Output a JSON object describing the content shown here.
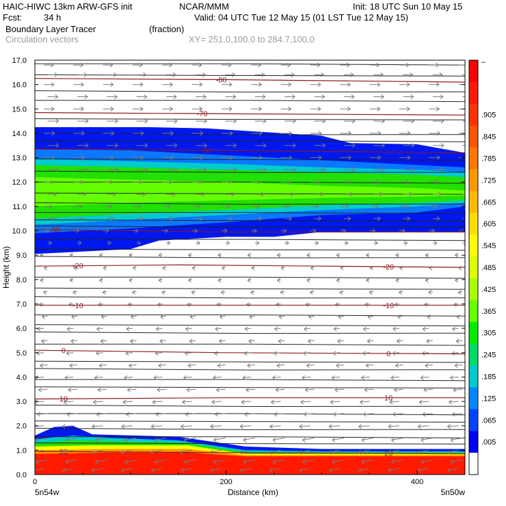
{
  "header": {
    "model": "HAIC-HIWC 13km ARW-GFS init",
    "org": "NCAR/MMM",
    "init": "Init: 18 UTC Sun 10 May 15",
    "fcst_label": "Fcst:",
    "fcst_value": "34 h",
    "valid": "Valid: 04 UTC Tue 12 May 15 (01 LST Tue 12 May 15)",
    "field": "Boundary Layer Tracer",
    "units": "(fraction)",
    "vectors": "Circulation vectors",
    "xy": "XY= 251.0,100.0 to 284.7,100.0"
  },
  "chart_data": {
    "type": "heatmap",
    "title": "Boundary Layer Tracer",
    "xlabel": "Distance (km)",
    "ylabel": "Height (km)",
    "xlim": [
      0,
      450
    ],
    "ylim": [
      0,
      17
    ],
    "x_ticks": [
      0,
      200,
      400
    ],
    "x_tick_labels": [
      "0",
      "200",
      "400"
    ],
    "y_ticks": [
      0,
      1,
      2,
      3,
      4,
      5,
      6,
      7,
      8,
      9,
      10,
      11,
      12,
      13,
      14,
      15,
      16,
      17
    ],
    "y_tick_labels": [
      "0.0",
      "1.0",
      "2.0",
      "3.0",
      "4.0",
      "5.0",
      "6.0",
      "7.0",
      "8.0",
      "9.0",
      "10.0",
      "11.0",
      "12.0",
      "13.0",
      "14.0",
      "15.0",
      "16.0",
      "17.0"
    ],
    "endpoint_labels": {
      "left": "5n54w",
      "right": "5n50w"
    },
    "colorbar": {
      "labels": [
        "–",
        ".905",
        ".845",
        ".785",
        ".725",
        ".665",
        ".605",
        ".545",
        ".485",
        ".425",
        ".365",
        ".305",
        ".245",
        ".185",
        ".125",
        ".065",
        ".005"
      ],
      "colors": [
        "#ff0000",
        "#ff1a00",
        "#ff3300",
        "#ff5500",
        "#ff7700",
        "#ff9900",
        "#ffbb00",
        "#ffdd00",
        "#ffff00",
        "#ddff00",
        "#aaff00",
        "#66ff00",
        "#00ee00",
        "#00dd66",
        "#00cccc",
        "#0088ff",
        "#0044ff",
        "#0000ff",
        "#ffffff"
      ]
    },
    "bands": [
      {
        "name": "upper-outer",
        "color": "#0018f0",
        "top": [
          [
            0,
            14.25
          ],
          [
            120,
            14.25
          ],
          [
            180,
            14.2
          ],
          [
            300,
            13.9
          ],
          [
            330,
            13.6
          ],
          [
            400,
            13.55
          ],
          [
            450,
            13.2
          ]
        ],
        "bottom": [
          [
            0,
            9.05
          ],
          [
            100,
            9.25
          ],
          [
            130,
            9.6
          ],
          [
            200,
            9.75
          ],
          [
            250,
            9.75
          ],
          [
            300,
            9.95
          ],
          [
            400,
            9.95
          ],
          [
            450,
            9.95
          ]
        ]
      },
      {
        "name": "upper-mid",
        "color": "#0a78ff",
        "top": [
          [
            0,
            13.35
          ],
          [
            100,
            13.3
          ],
          [
            200,
            13.1
          ],
          [
            300,
            12.9
          ],
          [
            400,
            12.7
          ],
          [
            450,
            12.6
          ]
        ],
        "bottom": [
          [
            0,
            9.9
          ],
          [
            100,
            10.1
          ],
          [
            200,
            10.35
          ],
          [
            300,
            10.65
          ],
          [
            400,
            10.75
          ],
          [
            450,
            11.0
          ]
        ]
      },
      {
        "name": "upper-cyan",
        "color": "#00cccc",
        "top": [
          [
            0,
            12.95
          ],
          [
            100,
            12.85
          ],
          [
            200,
            12.75
          ],
          [
            300,
            12.6
          ],
          [
            400,
            12.5
          ],
          [
            450,
            12.4
          ]
        ],
        "bottom": [
          [
            0,
            10.25
          ],
          [
            100,
            10.45
          ],
          [
            200,
            10.65
          ],
          [
            300,
            10.85
          ],
          [
            400,
            11.0
          ],
          [
            450,
            11.15
          ]
        ]
      },
      {
        "name": "upper-green",
        "color": "#22e000",
        "top": [
          [
            0,
            12.7
          ],
          [
            100,
            12.6
          ],
          [
            200,
            12.5
          ],
          [
            300,
            12.4
          ],
          [
            400,
            12.3
          ],
          [
            450,
            12.2
          ]
        ],
        "bottom": [
          [
            0,
            10.5
          ],
          [
            100,
            10.7
          ],
          [
            200,
            10.85
          ],
          [
            300,
            11.05
          ],
          [
            400,
            11.15
          ],
          [
            450,
            11.25
          ]
        ]
      },
      {
        "name": "upper-lime",
        "color": "#66ff00",
        "top": [
          [
            0,
            12.2
          ],
          [
            100,
            12.1
          ],
          [
            200,
            12.0
          ],
          [
            300,
            11.85
          ],
          [
            400,
            11.75
          ],
          [
            450,
            11.65
          ]
        ],
        "bottom": [
          [
            0,
            11.0
          ],
          [
            100,
            11.15
          ],
          [
            200,
            11.25
          ],
          [
            300,
            11.35
          ],
          [
            400,
            11.4
          ],
          [
            450,
            11.45
          ]
        ]
      },
      {
        "name": "bl-blue",
        "color": "#0018f0",
        "top": [
          [
            0,
            1.6
          ],
          [
            20,
            1.95
          ],
          [
            40,
            2.0
          ],
          [
            60,
            1.65
          ],
          [
            150,
            1.55
          ],
          [
            220,
            1.15
          ],
          [
            300,
            1.05
          ],
          [
            450,
            1.05
          ]
        ],
        "bottom": [
          [
            0,
            0
          ],
          [
            450,
            0
          ]
        ]
      },
      {
        "name": "bl-cyan",
        "color": "#00cccc",
        "top": [
          [
            0,
            1.45
          ],
          [
            40,
            1.6
          ],
          [
            80,
            1.5
          ],
          [
            150,
            1.4
          ],
          [
            220,
            1.0
          ],
          [
            300,
            0.95
          ],
          [
            450,
            0.95
          ]
        ],
        "bottom": [
          [
            0,
            0
          ],
          [
            450,
            0
          ]
        ]
      },
      {
        "name": "bl-green",
        "color": "#22e000",
        "top": [
          [
            0,
            1.3
          ],
          [
            40,
            1.4
          ],
          [
            100,
            1.35
          ],
          [
            160,
            1.3
          ],
          [
            220,
            0.92
          ],
          [
            450,
            0.9
          ]
        ],
        "bottom": [
          [
            0,
            0
          ],
          [
            450,
            0
          ]
        ]
      },
      {
        "name": "bl-yellow",
        "color": "#ffff00",
        "top": [
          [
            0,
            1.15
          ],
          [
            60,
            1.2
          ],
          [
            160,
            1.2
          ],
          [
            220,
            0.85
          ],
          [
            450,
            0.85
          ]
        ],
        "bottom": [
          [
            0,
            0
          ],
          [
            450,
            0
          ]
        ]
      },
      {
        "name": "bl-orange",
        "color": "#ff9900",
        "top": [
          [
            0,
            1.0
          ],
          [
            80,
            1.05
          ],
          [
            160,
            1.05
          ],
          [
            220,
            0.8
          ],
          [
            450,
            0.8
          ]
        ],
        "bottom": [
          [
            0,
            0
          ],
          [
            450,
            0
          ]
        ]
      },
      {
        "name": "bl-red",
        "color": "#ff1a00",
        "top": [
          [
            0,
            0.85
          ],
          [
            80,
            0.9
          ],
          [
            160,
            0.9
          ],
          [
            220,
            0.75
          ],
          [
            450,
            0.75
          ]
        ],
        "bottom": [
          [
            0,
            0
          ],
          [
            450,
            0
          ]
        ]
      }
    ],
    "isotherms": [
      {
        "label": "-80",
        "label_x": 195,
        "points": [
          [
            0,
            16.25
          ],
          [
            200,
            16.2
          ],
          [
            450,
            16.1
          ]
        ]
      },
      {
        "label": "-70",
        "label_x": 175,
        "points": [
          [
            0,
            14.85
          ],
          [
            200,
            14.8
          ],
          [
            450,
            14.75
          ]
        ]
      },
      {
        "label": "-60",
        "label_x": 180,
        "points": [
          [
            0,
            13.35
          ],
          [
            200,
            13.3
          ],
          [
            450,
            13.2
          ]
        ]
      },
      {
        "label": "-30",
        "label_x": 20,
        "points": [
          [
            0,
            10.05
          ],
          [
            200,
            9.95
          ],
          [
            450,
            9.95
          ]
        ]
      },
      {
        "label": "-20",
        "label_x": 45,
        "label_x2": 370,
        "points": [
          [
            0,
            8.55
          ],
          [
            150,
            8.6
          ],
          [
            300,
            8.55
          ],
          [
            450,
            8.5
          ]
        ]
      },
      {
        "label": "-10",
        "label_x": 45,
        "label_x2": 370,
        "points": [
          [
            0,
            6.95
          ],
          [
            200,
            6.95
          ],
          [
            450,
            6.95
          ]
        ]
      },
      {
        "label": "0",
        "label_x": 30,
        "label_x2": 370,
        "points": [
          [
            0,
            5.1
          ],
          [
            200,
            5.0
          ],
          [
            450,
            4.95
          ]
        ]
      },
      {
        "label": "10",
        "label_x": 30,
        "label_x2": 370,
        "points": [
          [
            0,
            3.1
          ],
          [
            200,
            3.15
          ],
          [
            450,
            3.15
          ]
        ]
      },
      {
        "label": "20",
        "label_x": 30,
        "label_x2": 370,
        "points": [
          [
            0,
            0.95
          ],
          [
            200,
            0.9
          ],
          [
            450,
            0.85
          ]
        ]
      }
    ],
    "theta_lines_km": [
      16.85,
      16.4,
      15.75,
      15.35,
      14.6,
      14.0,
      13.7,
      12.95,
      12.45,
      12.0,
      11.55,
      11.15,
      10.75,
      10.45,
      10.2,
      9.65,
      9.25,
      8.95,
      8.1,
      7.65,
      7.3,
      6.55,
      6.15,
      5.85,
      5.35,
      4.65,
      4.35,
      3.9,
      3.6,
      2.85,
      2.5,
      2.2,
      1.9,
      1.55,
      1.3
    ],
    "vectors": {
      "x_spacing_km": 31,
      "rows": [
        {
          "z": 16.8,
          "dir": 1,
          "len": 14
        },
        {
          "z": 16.4,
          "dir": 1,
          "len": 14
        },
        {
          "z": 16.0,
          "dir": 1,
          "len": 15
        },
        {
          "z": 15.5,
          "dir": 1,
          "len": 15
        },
        {
          "z": 15.0,
          "dir": 1,
          "len": 15
        },
        {
          "z": 14.5,
          "dir": 1,
          "len": 16
        },
        {
          "z": 14.0,
          "dir": 1,
          "len": 16
        },
        {
          "z": 13.5,
          "dir": 1,
          "len": 16
        },
        {
          "z": 13.0,
          "dir": 1,
          "len": 16
        },
        {
          "z": 12.5,
          "dir": 1,
          "len": 16
        },
        {
          "z": 12.0,
          "dir": 1,
          "len": 14
        },
        {
          "z": 11.5,
          "dir": 1,
          "len": 13
        },
        {
          "z": 11.0,
          "dir": 1,
          "len": 12
        },
        {
          "z": 10.5,
          "dir": 1,
          "len": 10
        },
        {
          "z": 10.0,
          "dir": 1,
          "len": 8
        },
        {
          "z": 9.5,
          "dir": 1,
          "len": 6
        },
        {
          "z": 9.0,
          "dir": -1,
          "len": 5
        },
        {
          "z": 8.5,
          "dir": -1,
          "len": 5
        },
        {
          "z": 8.0,
          "dir": -1,
          "len": 5
        },
        {
          "z": 7.5,
          "dir": -1,
          "len": 6
        },
        {
          "z": 7.0,
          "dir": -1,
          "len": 7
        },
        {
          "z": 6.5,
          "dir": -1,
          "len": 8
        },
        {
          "z": 6.0,
          "dir": -1,
          "len": 9
        },
        {
          "z": 5.5,
          "dir": -1,
          "len": 9
        },
        {
          "z": 5.0,
          "dir": -1,
          "len": 10
        },
        {
          "z": 4.5,
          "dir": -1,
          "len": 11
        },
        {
          "z": 4.0,
          "dir": -1,
          "len": 12
        },
        {
          "z": 3.5,
          "dir": -1,
          "len": 13
        },
        {
          "z": 3.0,
          "dir": -1,
          "len": 14
        },
        {
          "z": 2.5,
          "dir": -1,
          "len": 15
        },
        {
          "z": 2.0,
          "dir": -1,
          "len": 16
        },
        {
          "z": 1.5,
          "dir": -1,
          "len": 17
        },
        {
          "z": 1.0,
          "dir": -1,
          "len": 17
        },
        {
          "z": 0.6,
          "dir": -1,
          "len": 17
        },
        {
          "z": 0.25,
          "dir": -1,
          "len": 16
        }
      ]
    },
    "grid": false
  }
}
